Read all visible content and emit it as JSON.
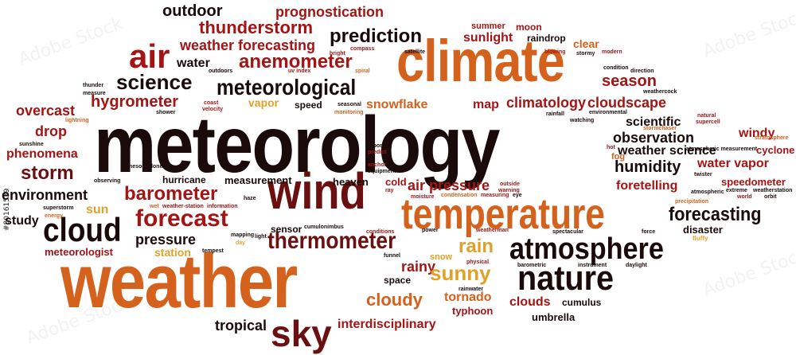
{
  "colors": {
    "dark": "#1a0a0a",
    "maroon": "#6b1010",
    "red": "#a51414",
    "orange": "#d4611c",
    "gold": "#e0a12a"
  },
  "stock_id": "#80161539",
  "watermark": "Adobe Stock",
  "words": {
    "meteorology": "meteorology",
    "weather": "weather",
    "climate": "climate",
    "temperature": "temperature",
    "wind": "wind",
    "atmosphere": "atmosphere",
    "nature": "nature",
    "sky": "sky",
    "cloud": "cloud",
    "forecast": "forecast",
    "forecasting": "forecasting",
    "thermometer": "thermometer",
    "air": "air",
    "science": "science",
    "meteorological": "meteorological",
    "anemometer": "anemometer",
    "thunderstorm": "thunderstorm",
    "prediction": "prediction",
    "outdoor": "outdoor",
    "prognostication": "prognostication",
    "weather_forecasting": "weather forecasting",
    "water": "water",
    "hygrometer": "hygrometer",
    "vapor": "vapor",
    "speed": "speed",
    "snowflake": "snowflake",
    "season": "season",
    "map": "map",
    "climatology": "climatology",
    "cloudscape": "cloudscape",
    "scientific": "scientific",
    "observation": "observation",
    "windy": "windy",
    "weather_science": "weather science",
    "cyclone": "cyclone",
    "humidity": "humidity",
    "water_vapor": "water vapor",
    "foretelling": "foretelling",
    "speedometer": "speedometer",
    "overcast": "overcast",
    "drop": "drop",
    "phenomena": "phenomena",
    "storm": "storm",
    "environment": "environment",
    "study": "study",
    "barometer": "barometer",
    "sun": "sun",
    "hurricane": "hurricane",
    "measurement": "measurement",
    "heaven": "heaven",
    "cold": "cold",
    "air_pressure": "air pressure",
    "pressure": "pressure",
    "sensor": "sensor",
    "station": "station",
    "meteorologist": "meteorologist",
    "rain": "rain",
    "rainy": "rainy",
    "sunny": "sunny",
    "snow": "snow",
    "space": "space",
    "cloudy": "cloudy",
    "tornado": "tornado",
    "typhoon": "typhoon",
    "clouds": "clouds",
    "cumulus": "cumulus",
    "umbrella": "umbrella",
    "tropical": "tropical",
    "interdisciplinary": "interdisciplinary",
    "summer": "summer",
    "moon": "moon",
    "sunlight": "sunlight",
    "raindrop": "raindrop",
    "clear": "clear",
    "disaster": "disaster",
    "fog": "fog",
    "fluffy": "fluffy",
    "satellite": "satellite",
    "compass": "compass",
    "bright": "bright",
    "blowing": "blowing",
    "stormy": "stormy",
    "modern": "modern",
    "condition": "condition",
    "direction": "direction",
    "weathercock": "weathercock",
    "thunder": "thunder",
    "outdoors": "outdoors",
    "uv_index": "uv index",
    "spiral": "spiral",
    "measure": "measure",
    "coast": "coast",
    "velocity": "velocity",
    "shower": "shower",
    "seasonal": "seasonal",
    "monitoring": "monitoring",
    "rainfall": "rainfall",
    "environmental": "environmental",
    "natural": "natural",
    "supercell": "supercell",
    "stormchaser": "stormchaser",
    "lightning": "lightning",
    "sunshine": "sunshine",
    "report": "report",
    "predict": "predict",
    "anchor": "anchor",
    "equipment": "equipment",
    "hot": "hot",
    "atmospheric_measurement": "atmospheric measurement",
    "stratosphere": "stratosphere",
    "mesocyclone": "mesocyclone",
    "observing": "observing",
    "twister": "twister",
    "extreme": "extreme",
    "weatherstation": "weatherstation",
    "world": "world",
    "orbit": "orbit",
    "precipitation": "precipitation",
    "atmospheric": "atmospheric",
    "superstorm": "superstorm",
    "energy": "energy",
    "wet": "wet",
    "weather_station": "weather-station",
    "information": "information",
    "haze": "haze",
    "ray": "ray",
    "moisture": "moisture",
    "condensation": "condensation",
    "measuring": "measuring",
    "outside": "outside",
    "warning": "warning",
    "eye": "eye",
    "mapping": "mapping",
    "light": "light",
    "cumulonimbus": "cumulonimbus",
    "conditions": "conditions",
    "power": "power",
    "weatherman": "weatherman",
    "spectacular": "spectacular",
    "force": "force",
    "tempest": "tempest",
    "day": "day",
    "funnel": "funnel",
    "physical": "physical",
    "rainwater": "rainwater",
    "barometric": "barometric",
    "instrument": "instrument",
    "daylight": "daylight",
    "watching": "watching"
  }
}
